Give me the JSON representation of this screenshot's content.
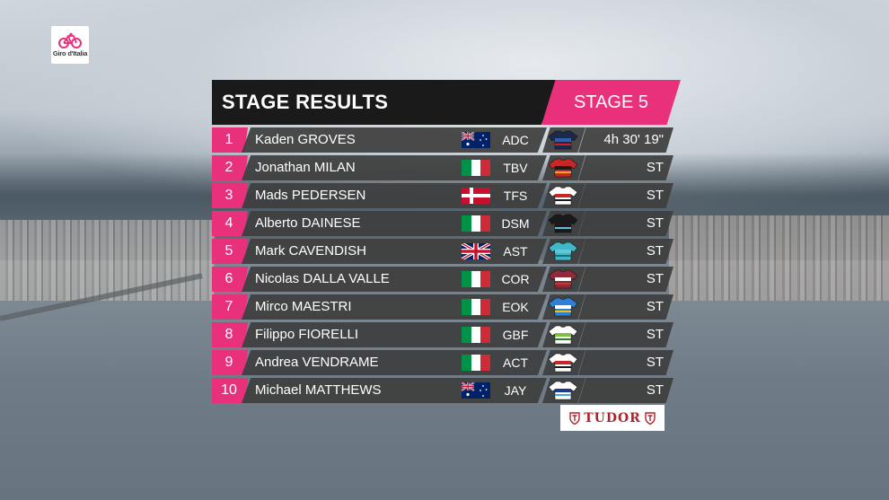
{
  "logo": {
    "text": "Giro d'Italia"
  },
  "header": {
    "title": "STAGE RESULTS",
    "stage": "STAGE 5"
  },
  "colors": {
    "accent": "#e8307b",
    "header_bg": "#1a1a1a",
    "row_bg": "#3e3e3e"
  },
  "results": [
    {
      "pos": "1",
      "name": "Kaden GROVES",
      "flag": "australia",
      "team": "ADC",
      "time": "4h 30' 19\""
    },
    {
      "pos": "2",
      "name": "Jonathan MILAN",
      "flag": "italy",
      "team": "TBV",
      "time": "ST"
    },
    {
      "pos": "3",
      "name": "Mads PEDERSEN",
      "flag": "denmark",
      "team": "TFS",
      "time": "ST"
    },
    {
      "pos": "4",
      "name": "Alberto DAINESE",
      "flag": "italy",
      "team": "DSM",
      "time": "ST"
    },
    {
      "pos": "5",
      "name": "Mark CAVENDISH",
      "flag": "uk",
      "team": "AST",
      "time": "ST"
    },
    {
      "pos": "6",
      "name": "Nicolas DALLA VALLE",
      "flag": "italy",
      "team": "COR",
      "time": "ST"
    },
    {
      "pos": "7",
      "name": "Mirco MAESTRI",
      "flag": "italy",
      "team": "EOK",
      "time": "ST"
    },
    {
      "pos": "8",
      "name": "Filippo FIORELLI",
      "flag": "italy",
      "team": "GBF",
      "time": "ST"
    },
    {
      "pos": "9",
      "name": "Andrea VENDRAME",
      "flag": "italy",
      "team": "ACT",
      "time": "ST"
    },
    {
      "pos": "10",
      "name": "Michael MATTHEWS",
      "flag": "australia",
      "team": "JAY",
      "time": "ST"
    }
  ],
  "sponsor": {
    "text": "TUDOR"
  }
}
